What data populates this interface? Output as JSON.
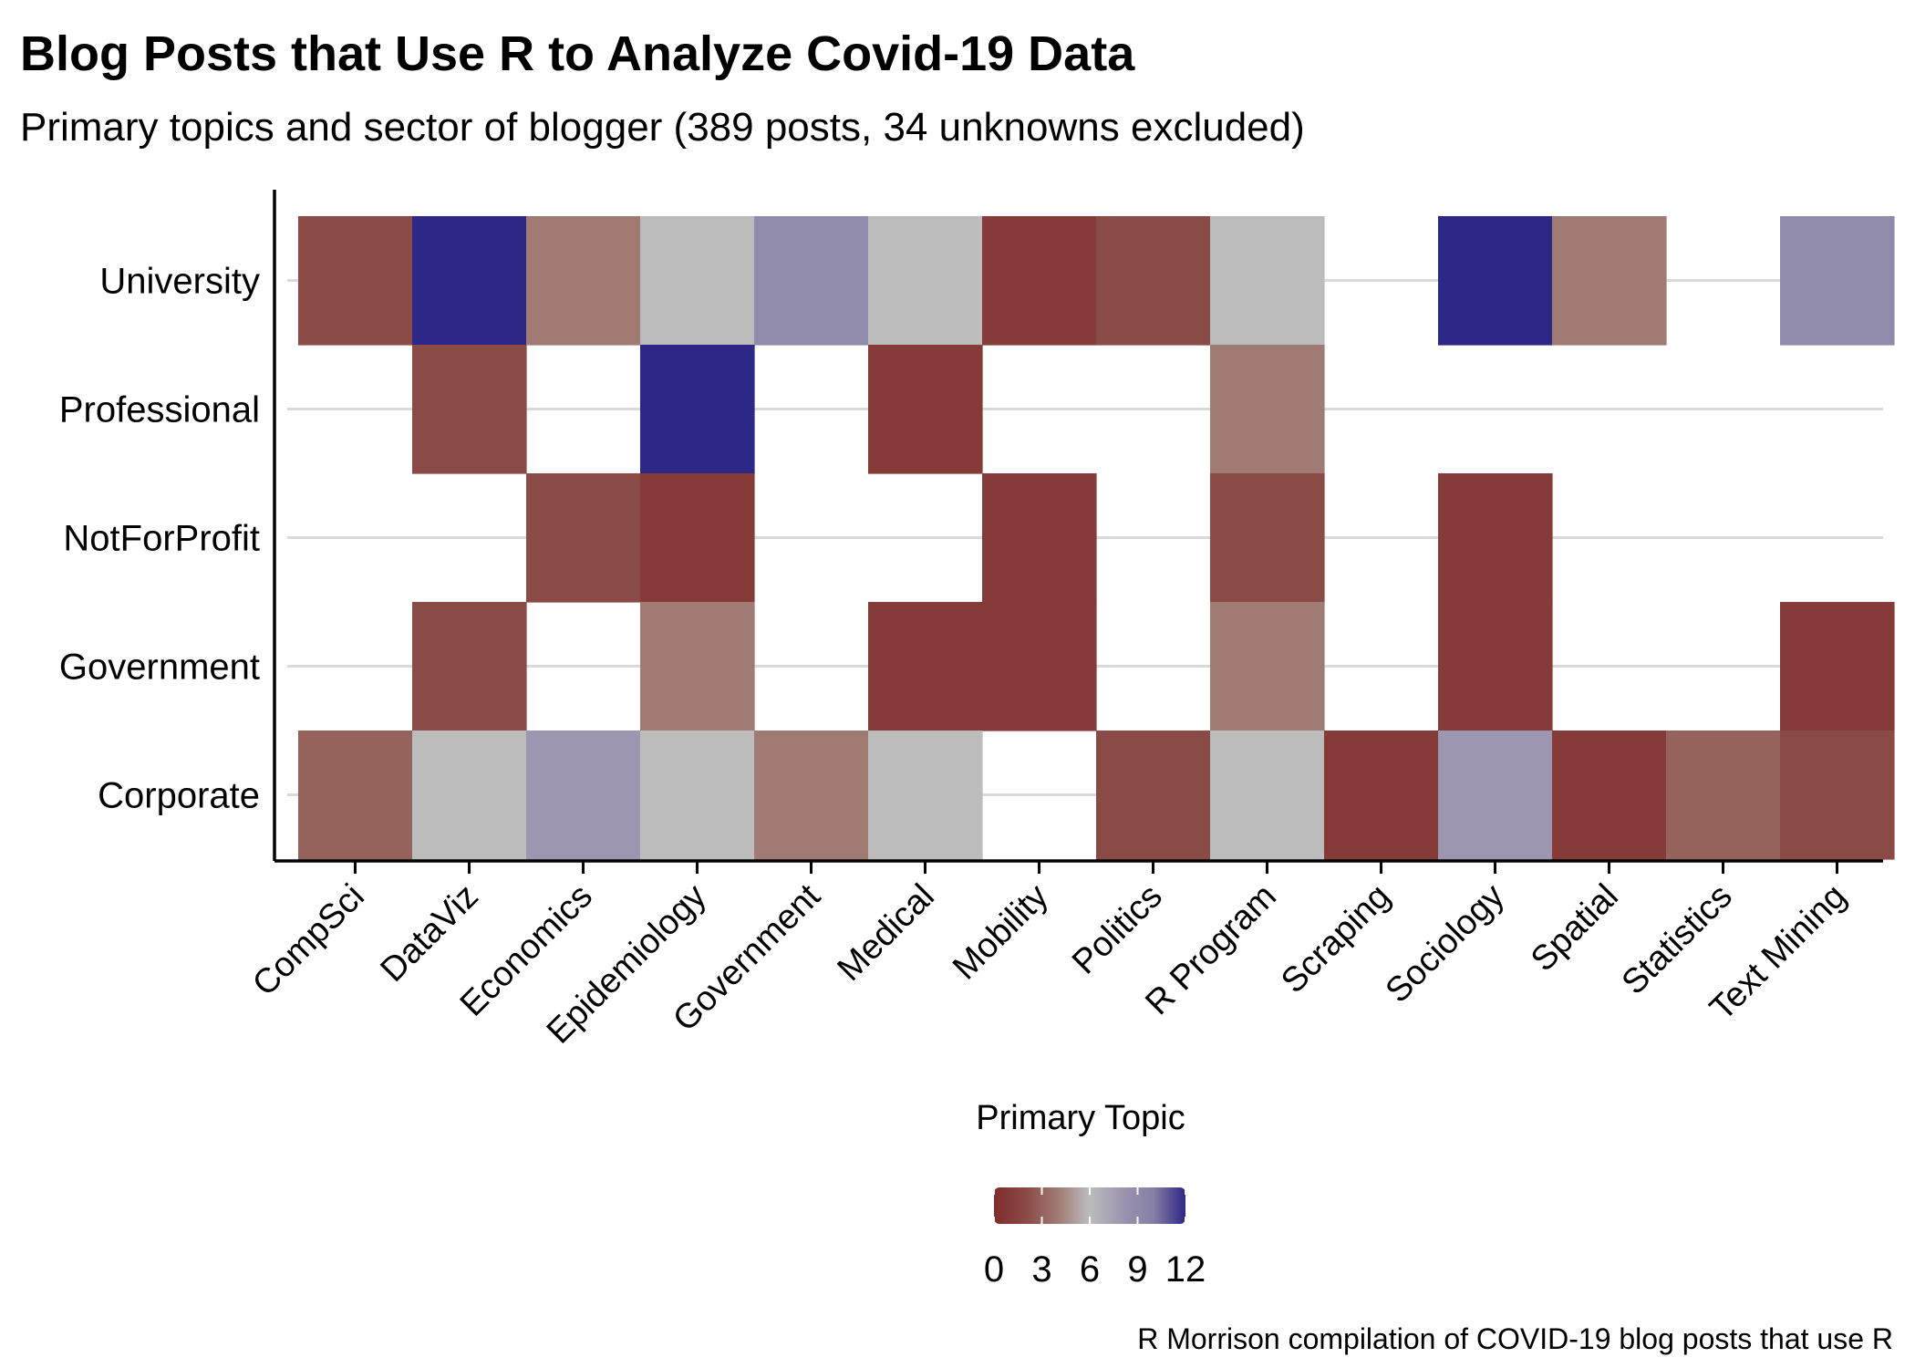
{
  "title": "Blog Posts that Use R to Analyze Covid-19 Data",
  "subtitle": "Primary topics and sector of blogger (389 posts, 34 unknowns excluded)",
  "caption": "R Morrison compilation of COVID-19 blog posts that use R",
  "chart_data": {
    "type": "heatmap",
    "title": "Blog Posts that Use R to Analyze Covid-19 Data",
    "subtitle": "Primary topics and sector of blogger (389 posts, 34 unknowns excluded)",
    "xlabel": "",
    "ylabel": "",
    "x_categories": [
      "CompSci",
      "DataViz",
      "Economics",
      "Epidemiology",
      "Government",
      "Medical",
      "Mobility",
      "Politics",
      "R Program",
      "Scraping",
      "Sociology",
      "Spatial",
      "Statistics",
      "Text Mining"
    ],
    "y_categories": [
      "University",
      "Professional",
      "NotForProfit",
      "Government",
      "Corporate"
    ],
    "values": [
      [
        2,
        12,
        4,
        6,
        9,
        6,
        1,
        2,
        6,
        null,
        12,
        4,
        null,
        9
      ],
      [
        null,
        2,
        null,
        12,
        null,
        1,
        null,
        null,
        4,
        null,
        null,
        null,
        null,
        null
      ],
      [
        null,
        null,
        2,
        1,
        null,
        null,
        1,
        null,
        2,
        null,
        1,
        null,
        null,
        null
      ],
      [
        null,
        2,
        null,
        4,
        null,
        1,
        1,
        null,
        4,
        null,
        1,
        null,
        null,
        1
      ],
      [
        3,
        6,
        8,
        6,
        4,
        6,
        null,
        2,
        6,
        1,
        8,
        1,
        3,
        2
      ]
    ],
    "color_scale": {
      "title": "Primary Topic",
      "ticks": [
        0,
        3,
        6,
        9,
        12
      ],
      "colors": [
        "#7f2d2d",
        "#8a4a45",
        "#a07b73",
        "#bcbcbc",
        "#9c96b0",
        "#857fa6",
        "#2d2785"
      ]
    },
    "grid": "horizontal major lines",
    "legend_position": "bottom"
  }
}
